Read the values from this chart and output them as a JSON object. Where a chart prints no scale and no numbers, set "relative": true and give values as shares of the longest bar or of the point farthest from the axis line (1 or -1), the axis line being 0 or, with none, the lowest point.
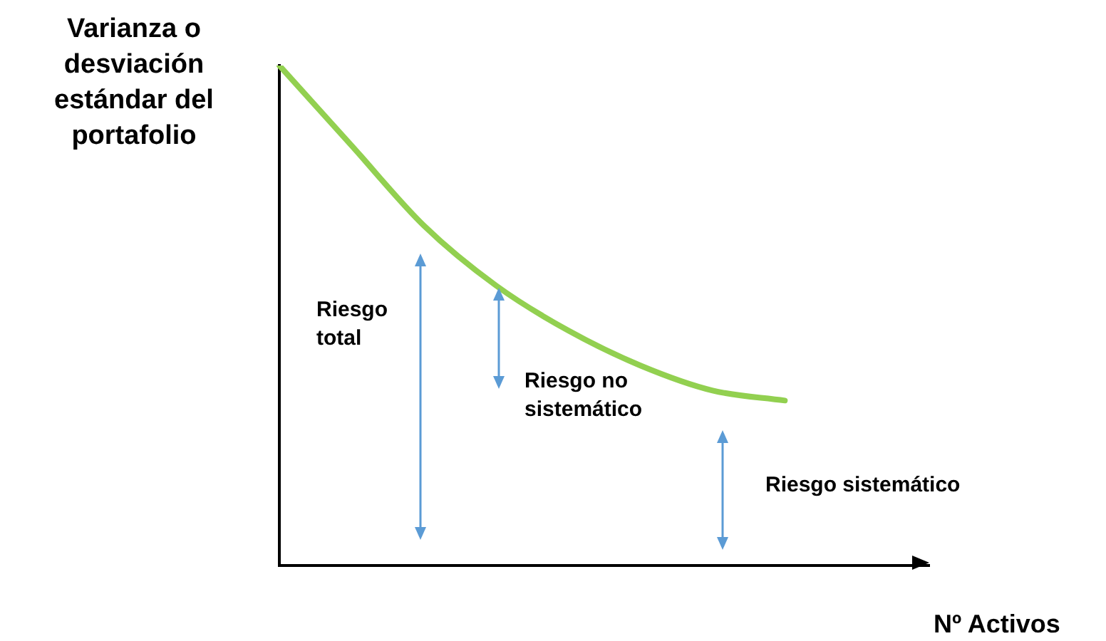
{
  "chart_data": {
    "type": "line",
    "xlabel": "Nº Activos",
    "ylabel": "Varianza o desviación estándar del portafolio",
    "categories": [
      null,
      null,
      null,
      null,
      null,
      null,
      null,
      null,
      null,
      null
    ],
    "relative": true,
    "series": [
      {
        "color": "#92d050",
        "values": [
          1,
          0.84,
          0.68,
          0.56,
          0.47,
          0.4,
          0.35,
          0.33,
          null,
          null
        ]
      }
    ],
    "annotations": [
      "Riesgo total",
      "Riesgo no sistemático",
      "Riesgo sistemático"
    ],
    "legend": false,
    "grid": false,
    "marker": "none",
    "line_style": "solid"
  }
}
